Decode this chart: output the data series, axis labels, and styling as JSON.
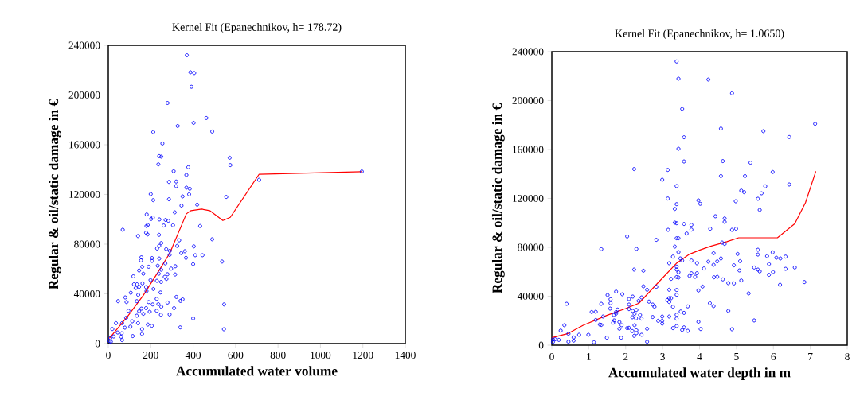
{
  "chart_data": [
    {
      "type": "scatter",
      "title": "Kernel Fit (Epanechnikov, h= 178.72)",
      "xlabel": "Accumulated water volume",
      "ylabel": "Regular & oil/static damage in €",
      "xlim": [
        0,
        1400
      ],
      "ylim": [
        0,
        240000
      ],
      "xticks": [
        0,
        200,
        400,
        600,
        800,
        1000,
        1200,
        1400
      ],
      "yticks": [
        0,
        40000,
        80000,
        120000,
        160000,
        200000,
        240000
      ],
      "series": [
        {
          "type": "scatter",
          "marker": "circle",
          "color": "#0000ff",
          "x": [
            370,
            387,
            405,
            392,
            279,
            462,
            402,
            327,
            490,
            212,
            255,
            240,
            250,
            236,
            572,
            575,
            377,
            308,
            368,
            286,
            320,
            320,
            368,
            384,
            200,
            350,
            381,
            212,
            286,
            556,
            345,
            419,
            313,
            181,
            210,
            202,
            241,
            270,
            283,
            68,
            186,
            180,
            261,
            305,
            433,
            178,
            185,
            140,
            239,
            490,
            334,
            250,
            240,
            325,
            403,
            230,
            273,
            290,
            361,
            344,
            289,
            410,
            444,
            156,
            206,
            366,
            240,
            154,
            206,
            269,
            536,
            400,
            316,
            233,
            160,
            190,
            296,
            250,
            145,
            238,
            165,
            279,
            315,
            118,
            266,
            274,
            199,
            229,
            249,
            161,
            121,
            135,
            129,
            145,
            178,
            180,
            213,
            106,
            246,
            141,
            80,
            46,
            86,
            134,
            321,
            340,
            350,
            546,
            228,
            190,
            279,
            95,
            156,
            178,
            209,
            236,
            250,
            310,
            145,
            165,
            195,
            228,
            248,
            289,
            400,
            134,
            84,
            65,
            36,
            113,
            140,
            186,
            205,
            104,
            78,
            339,
            545,
            159,
            19,
            44,
            63,
            115,
            159,
            60,
            25,
            65,
            9,
            5,
            12,
            711,
            1195
          ],
          "values": [
            232000,
            218300,
            217700,
            206600,
            193600,
            181500,
            177600,
            175100,
            170600,
            170200,
            161000,
            150800,
            150400,
            144200,
            149500,
            143600,
            141900,
            138700,
            135700,
            130100,
            130400,
            126700,
            125500,
            124600,
            120300,
            118400,
            120100,
            115400,
            116100,
            118000,
            111000,
            111800,
            105600,
            103900,
            101400,
            100300,
            99900,
            99500,
            98800,
            91600,
            95400,
            94600,
            95000,
            95200,
            94600,
            89200,
            87800,
            86500,
            87500,
            83900,
            83100,
            80900,
            78600,
            78600,
            78200,
            76500,
            76000,
            74600,
            74300,
            72800,
            71400,
            71100,
            71100,
            69400,
            68800,
            69000,
            68400,
            66900,
            66500,
            64500,
            66000,
            63900,
            62200,
            62600,
            61800,
            61800,
            60300,
            59400,
            58800,
            56200,
            56200,
            55800,
            55600,
            54100,
            53700,
            52000,
            51100,
            50500,
            49600,
            48400,
            47700,
            47700,
            44700,
            45600,
            45400,
            42200,
            43900,
            40900,
            41100,
            39200,
            37100,
            34100,
            33400,
            34100,
            37500,
            34300,
            35600,
            31500,
            36000,
            33400,
            33000,
            26400,
            28100,
            28500,
            31500,
            31700,
            29600,
            28500,
            26000,
            23900,
            25600,
            26400,
            23200,
            23400,
            20200,
            22400,
            20700,
            16400,
            16400,
            17900,
            16400,
            15300,
            14300,
            13600,
            12800,
            13000,
            11500,
            11500,
            11700,
            8900,
            8300,
            6000,
            7700,
            5500,
            5700,
            2800,
            4300,
            2100,
            1500,
            131800,
            138500
          ]
        },
        {
          "type": "line",
          "color": "#ff0000",
          "x": [
            5,
            90,
            165,
            228,
            290,
            368,
            390,
            440,
            478,
            540,
            575,
            711,
            1195
          ],
          "values": [
            4300,
            21700,
            38800,
            55800,
            72800,
            104400,
            107000,
            108200,
            107000,
            99000,
            101600,
            136300,
            138300
          ]
        }
      ]
    },
    {
      "type": "scatter",
      "title": "Kernel Fit (Epanechnikov, h= 1.0650)",
      "xlabel": "Accumulated water depth in m",
      "ylabel": "Regular & oil/static damage in €",
      "xlim": [
        0,
        8
      ],
      "ylim": [
        0,
        240000
      ],
      "xticks": [
        0,
        1,
        2,
        3,
        4,
        5,
        6,
        7,
        8
      ],
      "yticks": [
        0,
        40000,
        80000,
        120000,
        160000,
        200000,
        240000
      ],
      "series": [
        {
          "type": "scatter",
          "marker": "circle",
          "color": "#0000ff",
          "x": [
            3.38,
            3.43,
            3.53,
            3.58,
            3.43,
            3.58,
            2.23,
            3.14,
            2.99,
            3.38,
            3.14,
            3.38,
            3.33,
            3.97,
            3.33,
            3.38,
            3.58,
            3.78,
            3.78,
            3.15,
            3.65,
            2.04,
            3.38,
            3.43,
            2.83,
            3.33,
            1.34,
            2.29,
            3.43,
            3.28,
            3.48,
            3.53,
            3.78,
            3.18,
            3.93,
            3.38,
            3.38,
            2.23,
            2.48,
            3.43,
            3.78,
            3.93,
            3.73,
            3.88,
            3.38,
            3.43,
            3.23,
            2.48,
            2.83,
            2.58,
            3.18,
            3.38,
            3.97,
            3.38,
            1.51,
            1.74,
            1.91,
            2.19,
            2.43,
            2.09,
            1.59,
            3.23,
            3.18,
            3.13,
            2.63,
            2.35,
            1.59,
            1.34,
            2.09,
            0.4,
            2.73,
            3.18,
            2.78,
            3.28,
            1.58,
            3.68,
            1.78,
            2.09,
            2.29,
            2.19,
            1.08,
            1.19,
            1.74,
            3.49,
            3.58,
            1.68,
            1.74,
            2.24,
            2.18,
            2.39,
            1.39,
            2.73,
            2.99,
            3.18,
            3.38,
            1.19,
            2.43,
            2.28,
            3.38,
            2.88,
            2.99,
            1.69,
            3.97,
            1.3,
            1.34,
            1.66,
            1.83,
            1.89,
            2.24,
            2.58,
            2.99,
            3.28,
            3.38,
            3.58,
            2.04,
            2.09,
            1.83,
            0.34,
            0.24,
            0.45,
            0.74,
            0.99,
            2.18,
            2.29,
            2.29,
            2.23,
            2.43,
            3.53,
            3.68,
            0.59,
            0.59,
            0.45,
            1.49,
            1.88,
            1.14,
            2.58,
            0.03,
            0.09,
            0.19,
            0.03,
            4.24,
            4.88,
            7.13,
            4.58,
            5.73,
            6.43,
            4.63,
            5.38,
            4.58,
            5.23,
            5.98,
            6.43,
            5.78,
            5.13,
            5.21,
            5.68,
            5.58,
            4.98,
            5.63,
            4.02,
            4.43,
            4.68,
            4.68,
            4.29,
            4.88,
            4.99,
            4.61,
            4.68,
            5.58,
            5.58,
            5.98,
            5.03,
            4.38,
            5.83,
            6.08,
            6.19,
            6.33,
            4.58,
            4.48,
            4.24,
            5.1,
            5.88,
            4.38,
            4.93,
            5.48,
            6.58,
            4.12,
            6.33,
            5.58,
            5.63,
            5.08,
            5.99,
            5.88,
            4.39,
            4.48,
            4.63,
            4.78,
            4.93,
            5.13,
            6.84,
            6.18,
            4.08,
            5.33,
            4.28,
            4.38,
            4.78,
            5.48,
            4.03,
            4.88
          ],
          "values": [
            232000,
            217900,
            193200,
            170000,
            160600,
            150200,
            144000,
            143300,
            135300,
            130100,
            119900,
            115300,
            111400,
            118400,
            100200,
            99700,
            99100,
            98400,
            94500,
            94300,
            91300,
            88900,
            87400,
            87400,
            86100,
            80600,
            78500,
            78700,
            76100,
            72400,
            70900,
            69200,
            69200,
            67000,
            67000,
            64200,
            61800,
            61800,
            60900,
            59600,
            58800,
            58800,
            56600,
            55900,
            55700,
            55300,
            54200,
            48100,
            47700,
            45300,
            45300,
            45100,
            44700,
            41200,
            41000,
            43800,
            41600,
            39700,
            39000,
            37700,
            37500,
            38400,
            38400,
            36900,
            35600,
            36200,
            34300,
            33800,
            33200,
            33800,
            33200,
            35300,
            31400,
            31400,
            29900,
            31700,
            29100,
            29500,
            28800,
            28000,
            27100,
            27300,
            27100,
            27500,
            26400,
            24700,
            25800,
            25600,
            22800,
            24700,
            23400,
            23000,
            23400,
            23400,
            24900,
            20600,
            21700,
            21900,
            21700,
            19900,
            19900,
            20200,
            19100,
            16900,
            16500,
            18400,
            18900,
            16300,
            16300,
            13400,
            17600,
            13900,
            15600,
            14500,
            13900,
            14100,
            13400,
            16300,
            11900,
            9300,
            8500,
            8500,
            11500,
            12100,
            9800,
            7600,
            8500,
            12400,
            11700,
            6300,
            3700,
            2800,
            6100,
            6100,
            2400,
            2800,
            4600,
            4800,
            4300,
            2600,
            217200,
            206000,
            181000,
            177100,
            175000,
            170200,
            150500,
            149200,
            138300,
            138300,
            141600,
            131400,
            129900,
            126400,
            125100,
            124200,
            119700,
            117700,
            110600,
            115600,
            105400,
            103600,
            100800,
            95200,
            94300,
            95200,
            83900,
            82800,
            78000,
            74100,
            75900,
            74600,
            75200,
            72800,
            71500,
            70900,
            72400,
            70900,
            68500,
            68300,
            68700,
            66300,
            65700,
            65300,
            63500,
            63500,
            62700,
            62400,
            61800,
            60300,
            61100,
            59800,
            57500,
            55500,
            55900,
            53800,
            50700,
            50500,
            52900,
            51600,
            49400,
            47900,
            42300,
            34300,
            31900,
            28000,
            20200,
            13200,
            13000
          ]
        },
        {
          "type": "line",
          "color": "#ff0000",
          "x": [
            0,
            0.42,
            0.85,
            1.5,
            2.0,
            2.36,
            2.79,
            3.37,
            3.73,
            4.01,
            4.3,
            4.74,
            5.06,
            5.53,
            6.11,
            6.58,
            6.87,
            7.15
          ],
          "values": [
            6100,
            9300,
            16300,
            24500,
            29900,
            34300,
            48300,
            66800,
            74400,
            77800,
            80900,
            84600,
            87800,
            87800,
            87800,
            99300,
            116600,
            142200
          ]
        }
      ]
    }
  ]
}
